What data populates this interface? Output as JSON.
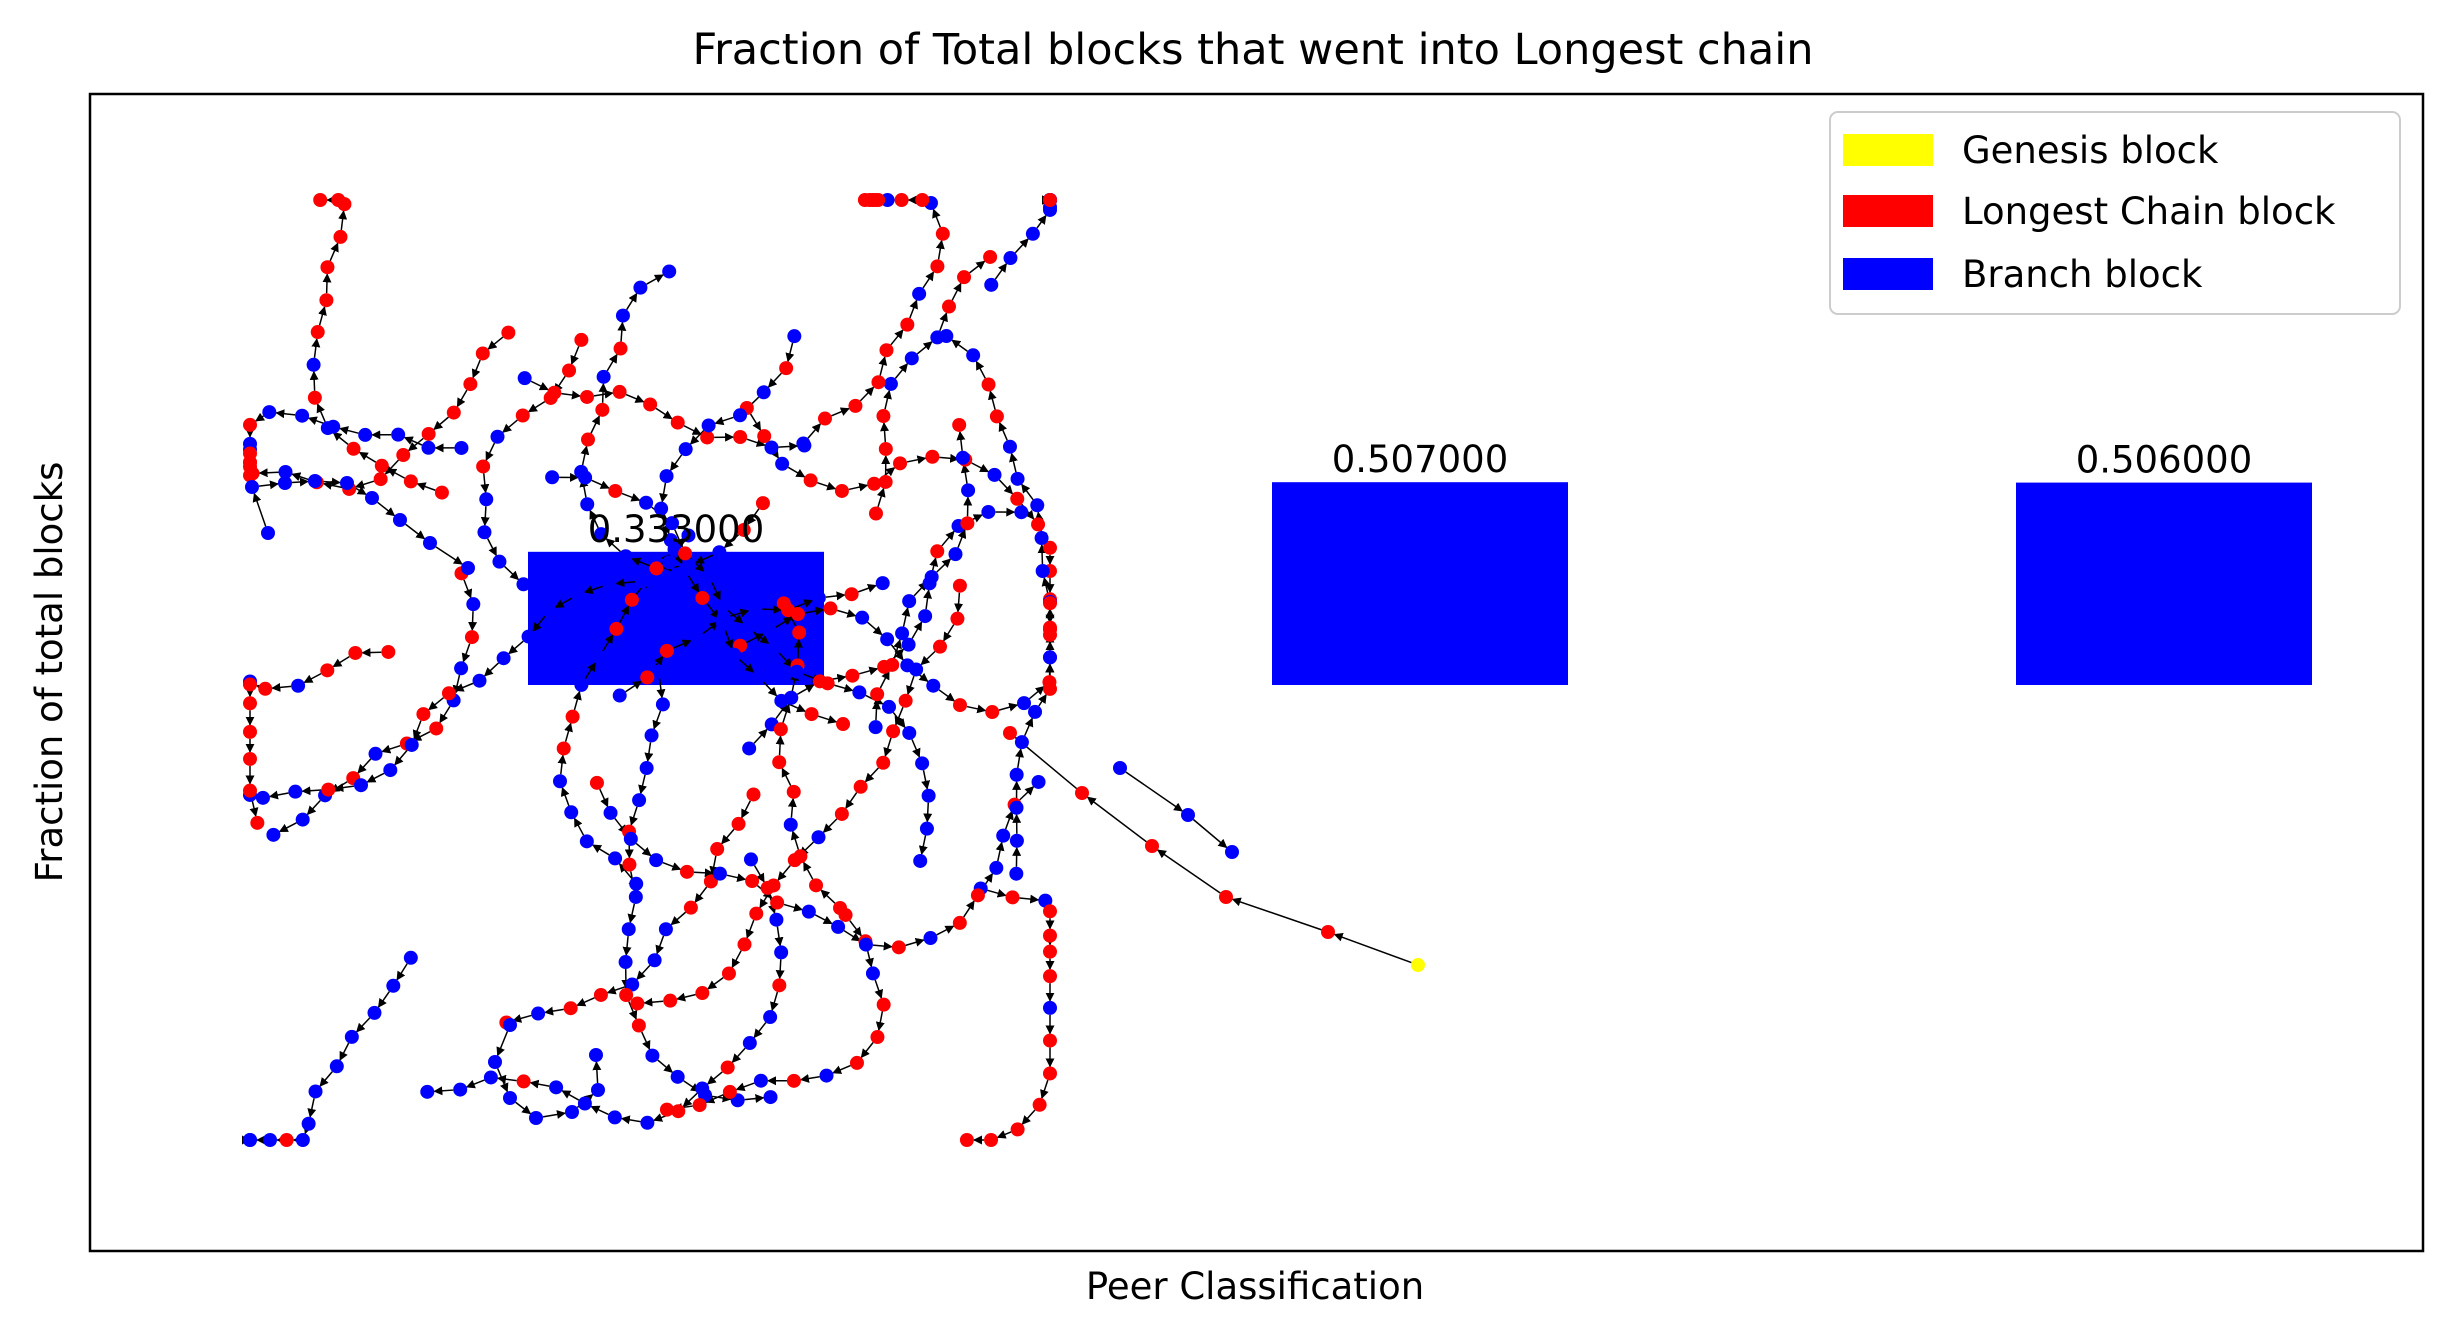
{
  "chart_data": {
    "type": "bar",
    "title": "Fraction of Total blocks that went into Longest chain",
    "xlabel": "Peer Classification",
    "ylabel": "Fraction of total blocks",
    "categories": [
      "",
      "",
      ""
    ],
    "values": [
      0.333,
      0.507,
      0.506
    ],
    "value_labels": [
      "0.333000",
      "0.507000",
      "0.506000"
    ],
    "bar_color": "#0000ff",
    "ylim": [
      0,
      1
    ],
    "grid": false,
    "legend": {
      "placement": "top-right",
      "entries": [
        {
          "label": "Genesis block",
          "color": "#ffff00"
        },
        {
          "label": "Longest Chain block",
          "color": "#ff0000"
        },
        {
          "label": "Branch block",
          "color": "#0000ff"
        }
      ]
    },
    "overlay": {
      "type": "network-graph",
      "node_colors": {
        "genesis": "#ffff00",
        "longest": "#ff0000",
        "branch": "#0000ff"
      },
      "edge_color": "#000000"
    }
  }
}
